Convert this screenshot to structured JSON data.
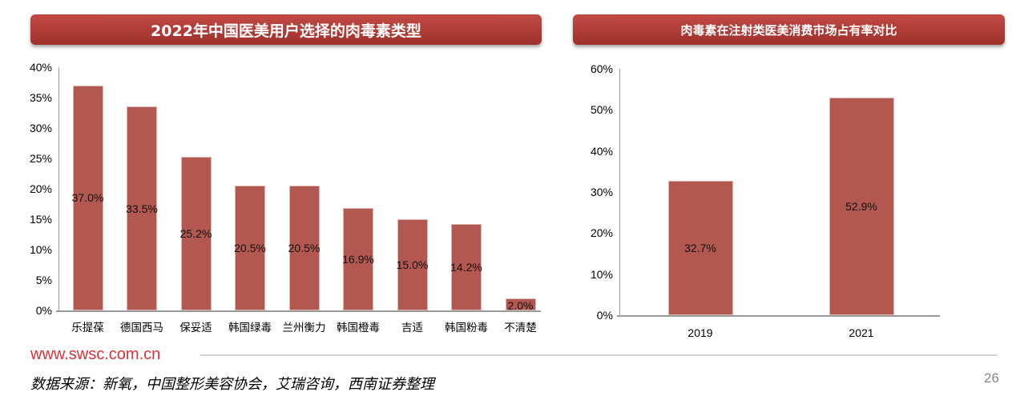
{
  "left_chart": {
    "title": "2022年中国医美用户选择的肉毒素类型"
  },
  "right_chart": {
    "title": "肉毒素在注射类医美消费市场占有率对比"
  },
  "footer": {
    "url": "www.swsc.com.cn",
    "source": "数据来源：新氧，中国整形美容协会，艾瑞咨询，西南证券整理",
    "page_number": "26"
  },
  "colors": {
    "bar": "#b35850",
    "banner": "#b23f3a",
    "url": "#d8323a"
  },
  "chart_data": [
    {
      "type": "bar",
      "title": "2022年中国医美用户选择的肉毒素类型",
      "categories": [
        "乐提葆",
        "德国西马",
        "保妥适",
        "韩国绿毒",
        "兰州衡力",
        "韩国橙毒",
        "吉适",
        "韩国粉毒",
        "不清楚"
      ],
      "values": [
        37.0,
        33.5,
        25.2,
        20.5,
        20.5,
        16.9,
        15.0,
        14.2,
        2.0
      ],
      "value_labels": [
        "37.0%",
        "33.5%",
        "25.2%",
        "20.5%",
        "20.5%",
        "16.9%",
        "15.0%",
        "14.2%",
        "2.0%"
      ],
      "xlabel": "",
      "ylabel": "",
      "ylim": [
        0,
        40
      ],
      "yticks": [
        "0%",
        "5%",
        "10%",
        "15%",
        "20%",
        "25%",
        "30%",
        "35%",
        "40%"
      ],
      "grid": false,
      "legend": "none"
    },
    {
      "type": "bar",
      "title": "肉毒素在注射类医美消费市场占有率对比",
      "categories": [
        "2019",
        "2021"
      ],
      "values": [
        32.7,
        52.9
      ],
      "value_labels": [
        "32.7%",
        "52.9%"
      ],
      "xlabel": "",
      "ylabel": "",
      "ylim": [
        0,
        60
      ],
      "yticks": [
        "0%",
        "10%",
        "20%",
        "30%",
        "40%",
        "50%",
        "60%"
      ],
      "grid": false,
      "legend": "none"
    }
  ]
}
